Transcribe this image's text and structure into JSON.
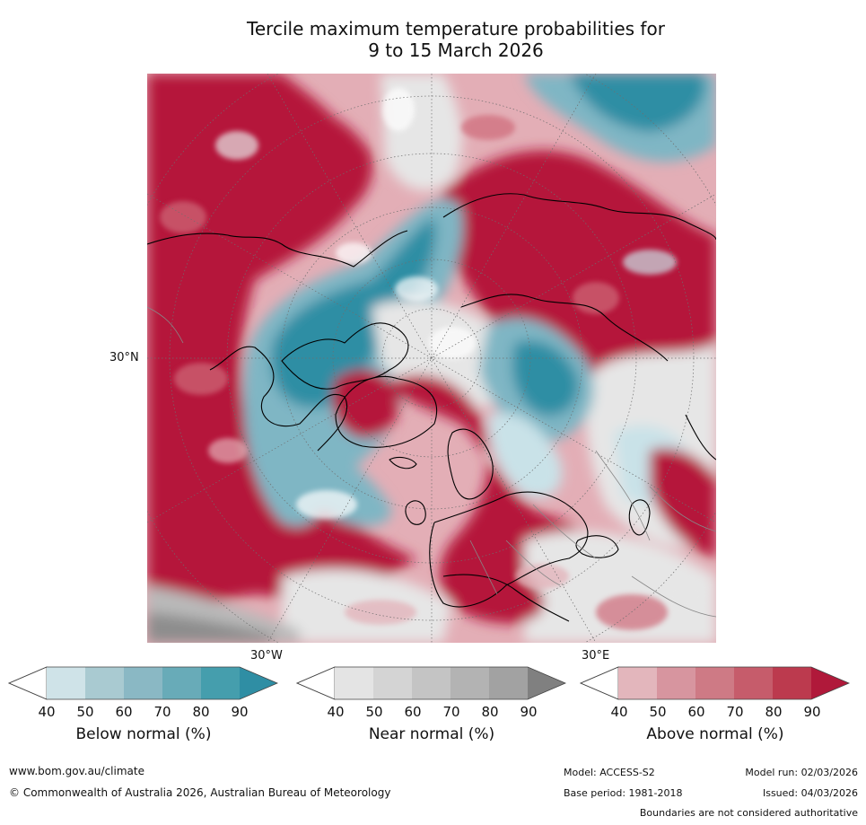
{
  "title_line1": "Tercile maximum temperature probabilities for",
  "title_line2": "9 to 15 March 2026",
  "map": {
    "projection": "north polar stereographic",
    "lat_label": "30°N",
    "lon_label_west": "30°W",
    "lon_label_east": "30°E",
    "colors": {
      "above_dark": "#b5193a",
      "above_mid": "#cf6b79",
      "above_light": "#e3aeb6",
      "near_light": "#e6e6e6",
      "near_mid": "#b9b9b9",
      "near_dark": "#8d8d8d",
      "below_light": "#c9e2e8",
      "below_mid": "#7fb6c4",
      "below_dark": "#2f8ea4",
      "coastline": "#000000",
      "border": "#888888",
      "graticule": "#6e6e6e"
    }
  },
  "legends": [
    {
      "label": "Below normal (%)",
      "ticks": [
        "40",
        "50",
        "60",
        "70",
        "80",
        "90"
      ],
      "colors": [
        "#cfe3e8",
        "#a9cad1",
        "#8ab8c4",
        "#68abb8",
        "#459ead",
        "#2f8ea4"
      ]
    },
    {
      "label": "Near normal (%)",
      "ticks": [
        "40",
        "50",
        "60",
        "70",
        "80",
        "90"
      ],
      "colors": [
        "#e4e4e4",
        "#d4d4d4",
        "#c4c4c4",
        "#b3b3b3",
        "#a2a2a2",
        "#808080"
      ]
    },
    {
      "label": "Above normal (%)",
      "ticks": [
        "40",
        "50",
        "60",
        "70",
        "80",
        "90"
      ],
      "colors": [
        "#e3b6bc",
        "#d7959f",
        "#ce7a85",
        "#c65c6b",
        "#bc3a4e",
        "#b0193a"
      ]
    }
  ],
  "footer": {
    "website": "www.bom.gov.au/climate",
    "copyright": "© Commonwealth of Australia 2026, Australian Bureau of Meteorology",
    "model": "Model: ACCESS-S2",
    "base_period": "Base period: 1981-2018",
    "model_run": "Model run: 02/03/2026",
    "issued": "Issued: 04/03/2026",
    "disclaimer": "Boundaries are not considered authoritative"
  }
}
